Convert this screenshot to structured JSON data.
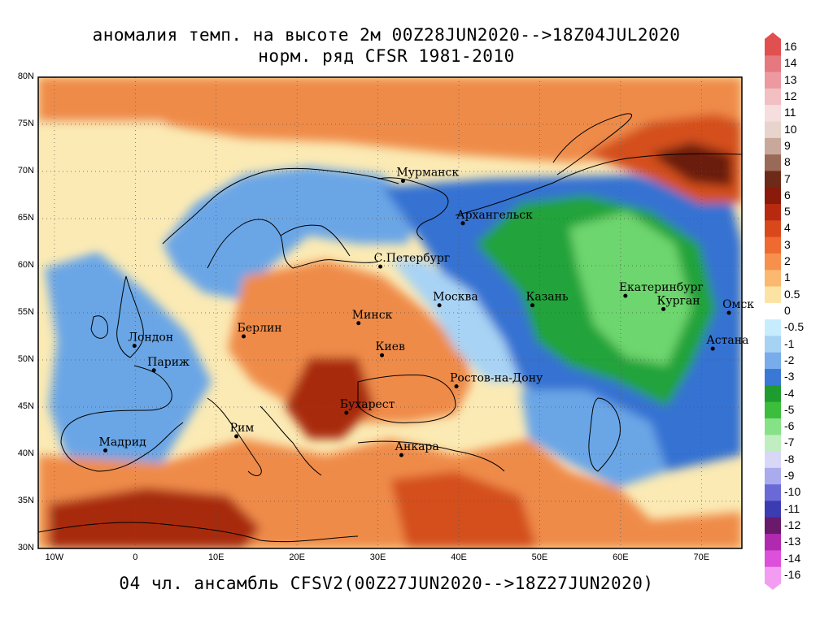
{
  "title": {
    "line1": "аномалия темп. на высоте 2м 00Z28JUN2020-->18Z04JUL2020",
    "line2": "норм. ряд CFSR 1981-2010"
  },
  "footer": "04 чл. ансамбль CFSV2(00Z27JUN2020-->18Z27JUN2020)",
  "axes": {
    "lat_ticks": [
      "80N",
      "75N",
      "70N",
      "65N",
      "60N",
      "55N",
      "50N",
      "45N",
      "40N",
      "35N",
      "30N"
    ],
    "lon_ticks": [
      "10W",
      "0",
      "10E",
      "20E",
      "30E",
      "40E",
      "50E",
      "60E",
      "70E"
    ],
    "lon_range": [
      -12,
      75
    ],
    "lat_range": [
      30,
      80
    ],
    "grid": "dotted"
  },
  "cities": [
    {
      "name": "Мурманск",
      "lon": 33.1,
      "lat": 69.0
    },
    {
      "name": "Архангельск",
      "lon": 40.5,
      "lat": 64.5
    },
    {
      "name": "С.Петербург",
      "lon": 30.3,
      "lat": 59.9
    },
    {
      "name": "Москва",
      "lon": 37.6,
      "lat": 55.8
    },
    {
      "name": "Казань",
      "lon": 49.1,
      "lat": 55.8
    },
    {
      "name": "Екатеринбург",
      "lon": 60.6,
      "lat": 56.8
    },
    {
      "name": "Курган",
      "lon": 65.3,
      "lat": 55.4
    },
    {
      "name": "Омск",
      "lon": 73.4,
      "lat": 55.0
    },
    {
      "name": "Астана",
      "lon": 71.4,
      "lat": 51.2
    },
    {
      "name": "Минск",
      "lon": 27.6,
      "lat": 53.9
    },
    {
      "name": "Берлин",
      "lon": 13.4,
      "lat": 52.5
    },
    {
      "name": "Лондон",
      "lon": -0.1,
      "lat": 51.5
    },
    {
      "name": "Париж",
      "lon": 2.3,
      "lat": 48.9
    },
    {
      "name": "Киев",
      "lon": 30.5,
      "lat": 50.5
    },
    {
      "name": "Ростов-на-Дону",
      "lon": 39.7,
      "lat": 47.2
    },
    {
      "name": "Бухарест",
      "lon": 26.1,
      "lat": 44.4
    },
    {
      "name": "Рим",
      "lon": 12.5,
      "lat": 41.9
    },
    {
      "name": "Мадрид",
      "lon": -3.7,
      "lat": 40.4
    },
    {
      "name": "Анкара",
      "lon": 32.9,
      "lat": 39.9
    }
  ],
  "colorbar": {
    "labels": [
      "16",
      "14",
      "13",
      "12",
      "11",
      "10",
      "9",
      "8",
      "7",
      "6",
      "5",
      "4",
      "3",
      "2",
      "1",
      "0.5",
      "0",
      "-0.5",
      "-1",
      "-2",
      "-3",
      "-4",
      "-5",
      "-6",
      "-7",
      "-8",
      "-9",
      "-10",
      "-11",
      "-12",
      "-13",
      "-14",
      "-16"
    ],
    "colors": [
      "#e24f4f",
      "#e6787f",
      "#ec9aa0",
      "#f2bfc3",
      "#f6dede",
      "#e8d4cc",
      "#c8a89b",
      "#9a6a58",
      "#6e2a18",
      "#8a1a0a",
      "#b82a10",
      "#d8481c",
      "#ee6a30",
      "#f6904c",
      "#fab870",
      "#fde3a3",
      "#ffffff",
      "#c8ecff",
      "#a6d2f4",
      "#78acea",
      "#3a78d6",
      "#1f9c2f",
      "#3cbe3c",
      "#86e286",
      "#c0eec0",
      "#d8d8f6",
      "#aaaaee",
      "#6a6ad6",
      "#3c3cb2",
      "#6a1a6a",
      "#b02ab0",
      "#dc50dc",
      "#f29cf2"
    ]
  },
  "map_colors": {
    "ocean_neutral": "#fbeab4",
    "warm_weak": "#f7b877",
    "warm": "#ef8b4a",
    "warm_strong": "#d4501e",
    "hot": "#a82a10",
    "hot_extreme": "#6b1d10",
    "cool_weak": "#a8d3f4",
    "cool": "#6aa6e6",
    "cold": "#3472d2",
    "cold_green": "#22a33a",
    "cold_green_light": "#6ed66e"
  }
}
